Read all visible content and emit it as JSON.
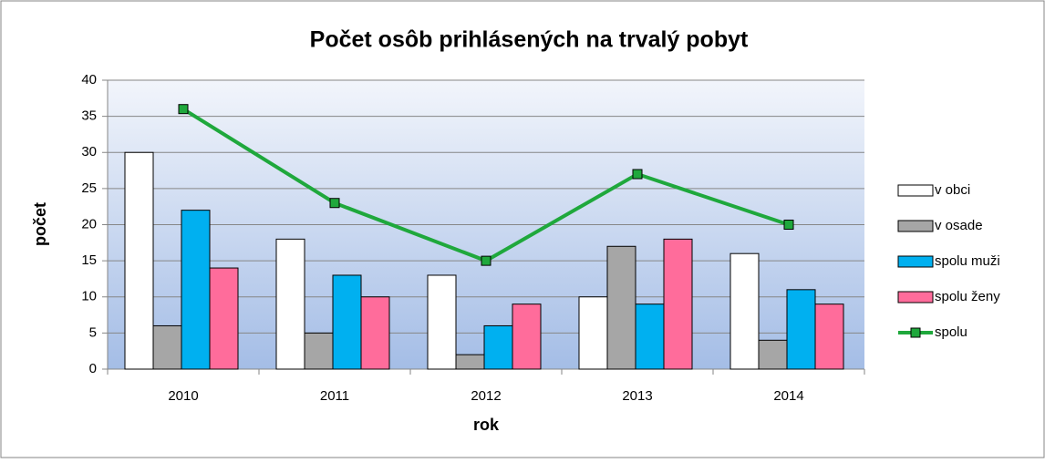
{
  "chart_data": {
    "type": "bar",
    "title": "Počet osôb prihlásených na trvalý pobyt",
    "x_label": "rok",
    "y_label": "počet",
    "categories": [
      "2010",
      "2011",
      "2012",
      "2013",
      "2014"
    ],
    "series": [
      {
        "name": "v obci",
        "color": "#ffffff",
        "values": [
          30,
          18,
          13,
          10,
          16
        ]
      },
      {
        "name": "v osade",
        "color": "#a6a6a6",
        "values": [
          6,
          5,
          2,
          17,
          4
        ]
      },
      {
        "name": "spolu muži",
        "color": "#00b0f0",
        "values": [
          22,
          13,
          6,
          9,
          11
        ]
      },
      {
        "name": "spolu ženy",
        "color": "#ff6c9b",
        "values": [
          14,
          10,
          9,
          18,
          9
        ]
      },
      {
        "name": "spolu",
        "color": "#1fa83c",
        "type": "line",
        "values": [
          36,
          23,
          15,
          27,
          20
        ]
      }
    ],
    "ylim": [
      0,
      40
    ],
    "yticks": [
      0,
      5,
      10,
      15,
      20,
      25,
      30,
      35,
      40
    ],
    "grid": true,
    "legend": "right"
  }
}
